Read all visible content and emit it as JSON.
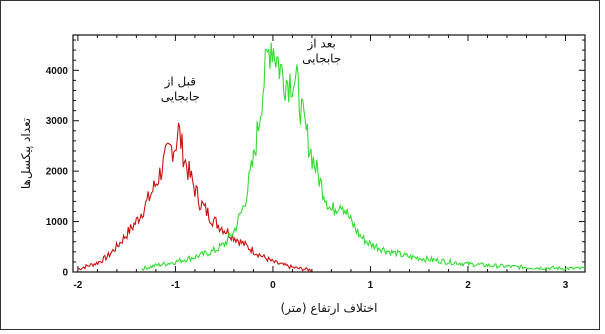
{
  "chart_data": {
    "type": "line",
    "title": "",
    "xlabel": "اختلاف ارتفاع (متر)",
    "ylabel": "تعداد پیکسل‌ها",
    "xlim": [
      -2.05,
      3.2
    ],
    "ylim": [
      0,
      4700
    ],
    "xticks": [
      "-2",
      "-1",
      "0",
      "1",
      "2",
      "3"
    ],
    "yticks": [
      "0",
      "1000",
      "2000",
      "3000",
      "4000"
    ],
    "grid": false,
    "series": [
      {
        "color": "#cc1111",
        "points": [
          [
            -2.0,
            60
          ],
          [
            -1.9,
            120
          ],
          [
            -1.8,
            180
          ],
          [
            -1.7,
            300
          ],
          [
            -1.6,
            500
          ],
          [
            -1.5,
            750
          ],
          [
            -1.4,
            1000
          ],
          [
            -1.3,
            1350
          ],
          [
            -1.2,
            1750
          ],
          [
            -1.15,
            2000
          ],
          [
            -1.1,
            2250
          ],
          [
            -1.05,
            2450
          ],
          [
            -1.0,
            2500
          ],
          [
            -0.97,
            2850
          ],
          [
            -0.93,
            2450
          ],
          [
            -0.9,
            2200
          ],
          [
            -0.85,
            1900
          ],
          [
            -0.8,
            1650
          ],
          [
            -0.75,
            1400
          ],
          [
            -0.7,
            1250
          ],
          [
            -0.6,
            1000
          ],
          [
            -0.5,
            850
          ],
          [
            -0.4,
            700
          ],
          [
            -0.3,
            550
          ],
          [
            -0.2,
            420
          ],
          [
            -0.1,
            300
          ],
          [
            0.0,
            200
          ],
          [
            0.1,
            140
          ],
          [
            0.2,
            90
          ],
          [
            0.3,
            60
          ],
          [
            0.4,
            40
          ]
        ]
      },
      {
        "color": "#33dd33",
        "points": [
          [
            -1.35,
            60
          ],
          [
            -1.2,
            130
          ],
          [
            -1.0,
            200
          ],
          [
            -0.8,
            300
          ],
          [
            -0.6,
            420
          ],
          [
            -0.5,
            550
          ],
          [
            -0.4,
            800
          ],
          [
            -0.3,
            1300
          ],
          [
            -0.2,
            2200
          ],
          [
            -0.15,
            2900
          ],
          [
            -0.1,
            3700
          ],
          [
            -0.05,
            4300
          ],
          [
            -0.02,
            4600
          ],
          [
            0.05,
            4200
          ],
          [
            0.1,
            3900
          ],
          [
            0.15,
            3800
          ],
          [
            0.2,
            3850
          ],
          [
            0.25,
            3700
          ],
          [
            0.3,
            3100
          ],
          [
            0.4,
            2300
          ],
          [
            0.5,
            1700
          ],
          [
            0.6,
            1200
          ],
          [
            0.7,
            1400
          ],
          [
            0.8,
            1000
          ],
          [
            0.9,
            700
          ],
          [
            1.0,
            550
          ],
          [
            1.2,
            400
          ],
          [
            1.4,
            300
          ],
          [
            1.6,
            250
          ],
          [
            1.8,
            200
          ],
          [
            2.0,
            160
          ],
          [
            2.2,
            130
          ],
          [
            2.4,
            110
          ],
          [
            2.6,
            90
          ],
          [
            2.8,
            80
          ],
          [
            3.0,
            70
          ],
          [
            3.2,
            70
          ]
        ]
      }
    ],
    "annotations": [
      {
        "lines": [
          "قبل از",
          "جابجایی"
        ],
        "x": -0.95,
        "y": 3700
      },
      {
        "lines": [
          "بعد از",
          "جابجایی"
        ],
        "x": 0.5,
        "y": 4450
      }
    ]
  }
}
